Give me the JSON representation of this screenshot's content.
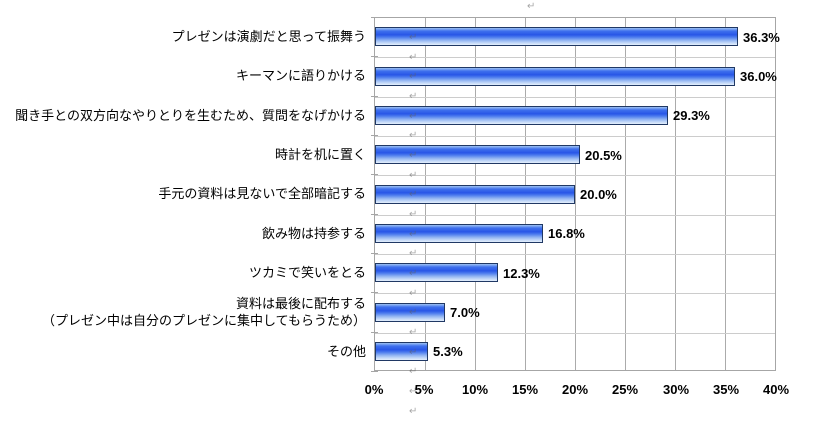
{
  "chart_data": {
    "type": "bar",
    "orientation": "horizontal",
    "title": "",
    "xlabel": "",
    "ylabel": "",
    "xlim": [
      0,
      40
    ],
    "grid": "vertical major gridlines every 5%, light horizontal category separators",
    "legend": "none",
    "categories": [
      "プレゼンは演劇だと思って振舞う",
      "キーマンに語りかける",
      "聞き手との双方向なやりとりを生むため、質問をなげかける",
      "時計を机に置く",
      "手元の資料は見ないで全部暗記する",
      "飲み物は持参する",
      "ツカミで笑いをとる",
      "資料は最後に配布する\n（プレゼン中は自分のプレゼンに集中してもらうため）",
      "その他"
    ],
    "values": [
      36.3,
      36.0,
      29.3,
      20.5,
      20.0,
      16.8,
      12.3,
      7.0,
      5.3
    ],
    "value_labels": [
      "36.3%",
      "36.0%",
      "29.3%",
      "20.5%",
      "20.0%",
      "16.8%",
      "12.3%",
      "7.0%",
      "5.3%"
    ],
    "x_ticks": [
      {
        "value": 0,
        "label": "0%"
      },
      {
        "value": 5,
        "label": "5%"
      },
      {
        "value": 10,
        "label": "10%"
      },
      {
        "value": 15,
        "label": "15%"
      },
      {
        "value": 20,
        "label": "20%"
      },
      {
        "value": 25,
        "label": "25%"
      },
      {
        "value": 30,
        "label": "30%"
      },
      {
        "value": 35,
        "label": "35%"
      },
      {
        "value": 40,
        "label": "40%"
      }
    ]
  },
  "colors": {
    "bar_border": "#203864",
    "bar_gradient_top": "#9dc1f2",
    "bar_gradient_mid": "#2856e7",
    "bar_gradient_bottom": "#e3eefc",
    "gridline_vertical": "#ababab",
    "gridline_horizontal": "#cccccc",
    "plot_border": "#a6a6a6",
    "text": "#000000",
    "background": "#ffffff"
  },
  "decorations": {
    "return_mark_glyph": "↵"
  }
}
